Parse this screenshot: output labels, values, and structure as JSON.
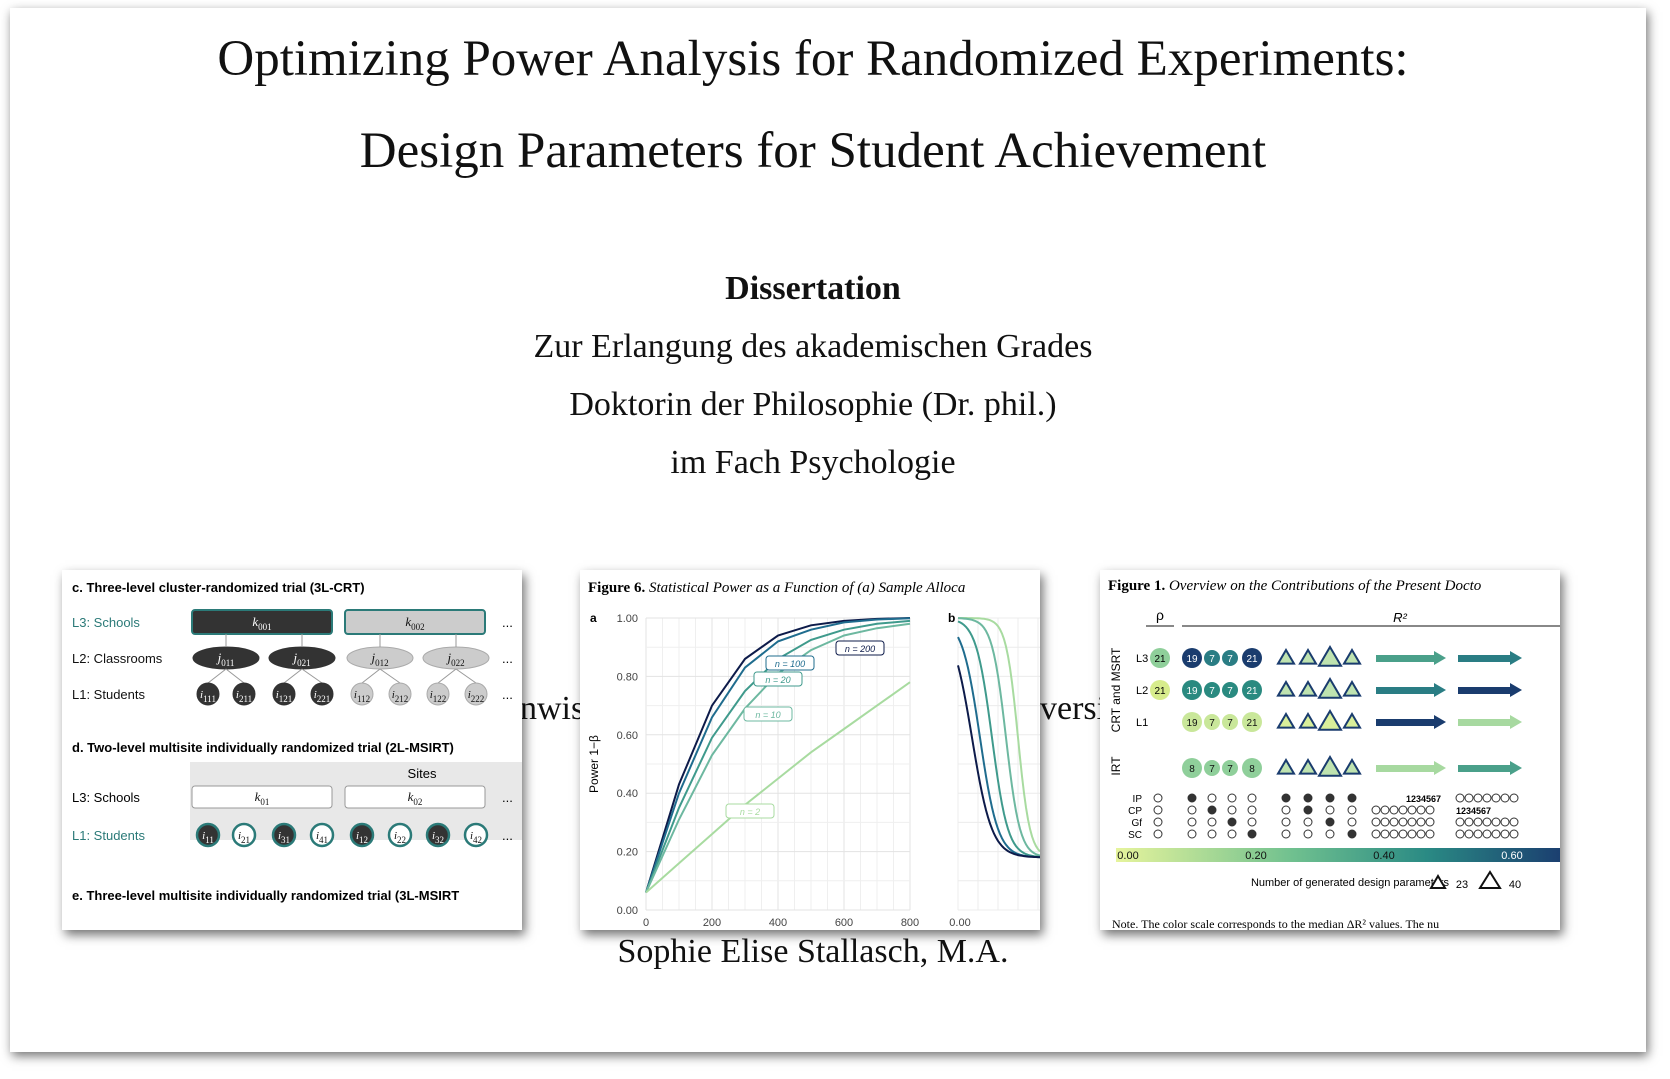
{
  "title_line1": "Optimizing Power Analysis for Randomized Experiments:",
  "title_line2": "Design Parameters for Student Achievement",
  "doc_type": "Dissertation",
  "line1": "Zur Erlangung des akademischen Grades",
  "line2": "Doktorin der Philosophie (Dr. phil.)",
  "line3": "im Fach Psychologie",
  "partial_left": "nwis",
  "partial_right": "versi",
  "author": "Sophie Elise Stallasch, M.A.",
  "panel_left": {
    "heading_c": "c. Three-level cluster-randomized trial (3L-CRT)",
    "heading_d": "d. Two-level multisite individually randomized trial (2L-MSIRT)",
    "heading_e": "e. Three-level multisite individually randomized trial (3L-MSIRT",
    "c_rows": [
      "L3: Schools",
      "L2: Classrooms",
      "L1: Students"
    ],
    "c_schools": [
      "k",
      "k"
    ],
    "c_schools_sub": [
      "001",
      "002"
    ],
    "c_classes": [
      "j",
      "j",
      "j",
      "j"
    ],
    "c_classes_sub": [
      "011",
      "021",
      "012",
      "022"
    ],
    "c_students_sub": [
      "111",
      "211",
      "121",
      "221",
      "112",
      "212",
      "122",
      "222"
    ],
    "d_sites": "Sites",
    "d_rows": [
      "L3: Schools",
      "L1: Students"
    ],
    "d_schools_sub": [
      "01",
      "02"
    ],
    "d_students_sub": [
      "11",
      "21",
      "31",
      "41",
      "12",
      "22",
      "32",
      "42"
    ],
    "student_letter": "i",
    "ellipsis": "..."
  },
  "panel_mid": {
    "caption_bold": "Figure 6.",
    "caption_ital": "Statistical Power as a Function of (a) Sample Alloca",
    "label_a": "a",
    "label_b": "b",
    "ylabel": "Power 1−β",
    "b_tick": "0.00",
    "curve_labels": [
      "n = 200",
      "n = 100",
      "n = 20",
      "n = 10",
      "n = 2"
    ],
    "curve_colors": [
      "#0d1b4a",
      "#1f6c8e",
      "#3f9a8c",
      "#6db8a0",
      "#a8dba0"
    ]
  },
  "chart_data": {
    "type": "line",
    "xlim": [
      0,
      800
    ],
    "ylim": [
      0,
      1
    ],
    "xticks": [
      "0",
      "200",
      "400",
      "600",
      "800"
    ],
    "yticks": [
      "0.00",
      "0.20",
      "0.40",
      "0.60",
      "0.80",
      "1.00"
    ],
    "series": [
      {
        "name": "n = 200",
        "x": [
          0,
          100,
          200,
          300,
          400,
          500,
          600,
          700,
          800
        ],
        "values": [
          0.06,
          0.43,
          0.7,
          0.86,
          0.94,
          0.975,
          0.99,
          0.997,
          1.0
        ]
      },
      {
        "name": "n = 100",
        "x": [
          0,
          100,
          200,
          300,
          400,
          500,
          600,
          700,
          800
        ],
        "values": [
          0.06,
          0.4,
          0.66,
          0.83,
          0.92,
          0.96,
          0.985,
          0.995,
          0.999
        ]
      },
      {
        "name": "n = 20",
        "x": [
          0,
          100,
          200,
          300,
          400,
          500,
          600,
          700,
          800
        ],
        "values": [
          0.06,
          0.35,
          0.59,
          0.75,
          0.86,
          0.925,
          0.96,
          0.98,
          0.99
        ]
      },
      {
        "name": "n = 10",
        "x": [
          0,
          100,
          200,
          300,
          400,
          500,
          600,
          700,
          800
        ],
        "values": [
          0.06,
          0.31,
          0.53,
          0.69,
          0.81,
          0.89,
          0.94,
          0.965,
          0.98
        ]
      },
      {
        "name": "n = 2",
        "x": [
          0,
          100,
          200,
          300,
          400,
          500,
          600,
          700,
          800
        ],
        "values": [
          0.06,
          0.16,
          0.26,
          0.36,
          0.45,
          0.54,
          0.62,
          0.7,
          0.78
        ]
      }
    ]
  },
  "panel_right": {
    "caption_bold": "Figure 1.",
    "caption_ital": "Overview on the Contributions of the Present Docto",
    "rho": "ρ",
    "r2": "R²",
    "side_labels": [
      "CRT and MSRT",
      "IRT"
    ],
    "rows": [
      "L3",
      "L2",
      "L1",
      ""
    ],
    "rho_values": [
      "21",
      "21",
      "",
      ""
    ],
    "r2_values": [
      [
        "19",
        "7",
        "7",
        "21"
      ],
      [
        "19",
        "7",
        "7",
        "21"
      ],
      [
        "19",
        "7",
        "7",
        "21"
      ],
      [
        "8",
        "7",
        "7",
        "8"
      ]
    ],
    "covariate_rows": [
      "IP",
      "CP",
      "Gf",
      "SC"
    ],
    "sequence": "1234567",
    "scale_ticks": [
      "0.00",
      "0.20",
      "0.40",
      "0.60"
    ],
    "legend_label": "Number of generated design parameters",
    "legend_values": [
      "23",
      "40"
    ],
    "note": "Note. The color scale corresponds to the median ΔR² values. The nu"
  }
}
